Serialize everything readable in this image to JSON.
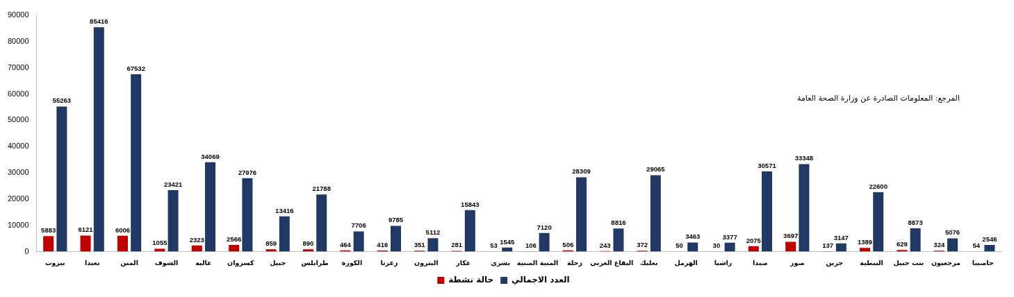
{
  "chart_data": {
    "type": "bar",
    "categories": [
      "بيروت",
      "بعبدا",
      "المتن",
      "الشوف",
      "عاليه",
      "كسروان",
      "جبيل",
      "طرابلس",
      "الكورة",
      "زغرتا",
      "البترون",
      "عكار",
      "بشري",
      "المنية الضنية",
      "زحلة",
      "البقاع الغربي",
      "بعلبك",
      "الهرمل",
      "راشيا",
      "صيدا",
      "صور",
      "جزين",
      "النبطية",
      "بنت جبيل",
      "مرجعيون",
      "حاصبيا"
    ],
    "series": [
      {
        "name": "حالة نشطة",
        "color": "#c00000",
        "values": [
          5883,
          6121,
          6006,
          1055,
          2323,
          2566,
          859,
          890,
          464,
          416,
          351,
          281,
          53,
          106,
          506,
          243,
          372,
          50,
          30,
          2075,
          3697,
          137,
          1389,
          629,
          324,
          54
        ]
      },
      {
        "name": "العدد الاجمالي",
        "color": "#1f3864",
        "values": [
          55263,
          85416,
          67532,
          23421,
          34069,
          27976,
          13416,
          21788,
          7706,
          9785,
          5112,
          15843,
          1545,
          7120,
          28309,
          8816,
          29065,
          3463,
          3377,
          30571,
          33348,
          3147,
          22600,
          8873,
          5076,
          2546
        ]
      }
    ],
    "ylim": [
      0,
      90000
    ],
    "yticks": [
      0,
      10000,
      20000,
      30000,
      40000,
      50000,
      60000,
      70000,
      80000,
      90000
    ],
    "grid": false,
    "legend": "bottom",
    "data_labels": true,
    "annotations": [
      "المرجع: المعلومات الصادرة عن وزارة الصحة العامة"
    ]
  }
}
